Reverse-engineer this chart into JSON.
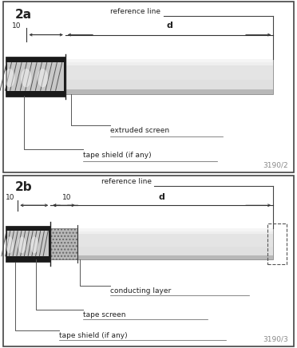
{
  "bg_color": "#ffffff",
  "border_color": "#444444",
  "text_color": "#222222",
  "dim_color": "#333333",
  "panel_2a": {
    "label": "2a",
    "ref_label": "reference line",
    "dim_10_label": "10",
    "dim_d_label": "d",
    "annotations": [
      "extruded screen",
      "tape shield (if any)"
    ],
    "watermark": "3190/2"
  },
  "panel_2b": {
    "label": "2b",
    "ref_label": "reference line",
    "dim_10a_label": "10",
    "dim_10b_label": "10",
    "dim_d_label": "d",
    "annotations": [
      "conducting layer",
      "tape screen",
      "tape shield (if any)"
    ],
    "watermark": "3190/3"
  }
}
